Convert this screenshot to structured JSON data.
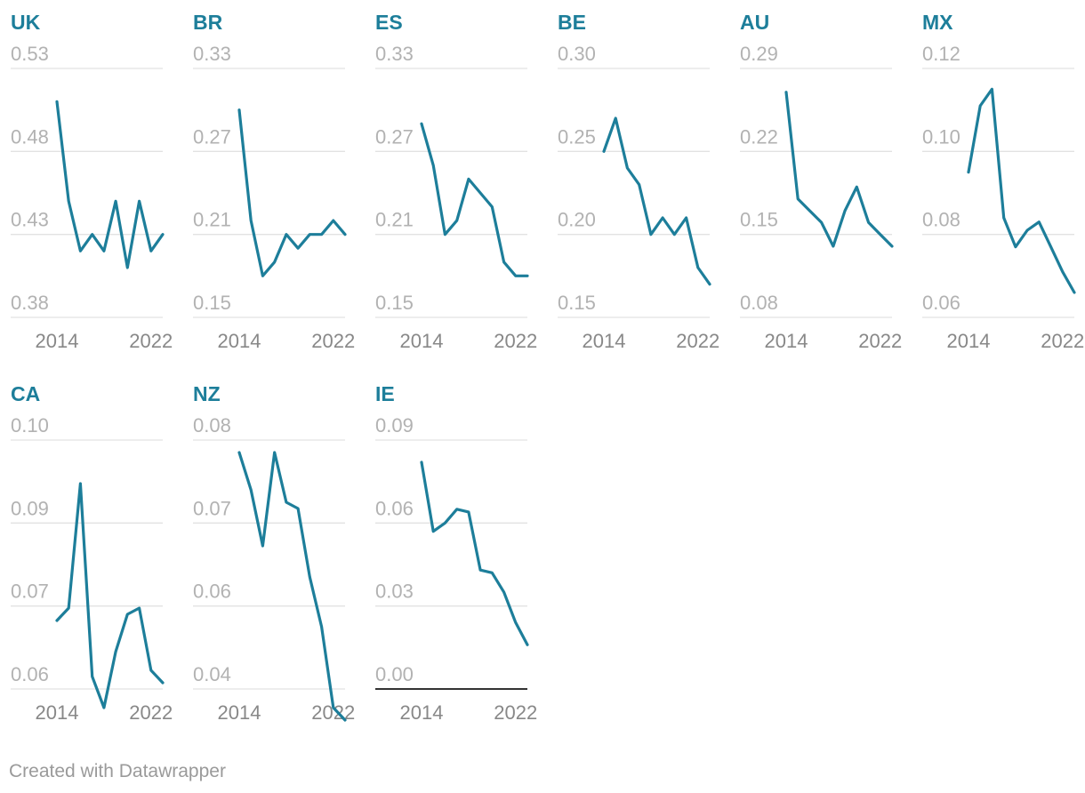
{
  "footer": {
    "credit": "Created with Datawrapper"
  },
  "colors": {
    "line": "#1d7e9a",
    "title": "#1d7e9a",
    "grid": "#e2e2e2",
    "tick": "#b2b2b2",
    "xtick": "#888888"
  },
  "chart_data": [
    {
      "type": "line",
      "title": "UK",
      "years": [
        2014,
        2015,
        2016,
        2017,
        2018,
        2019,
        2020,
        2021,
        2022,
        2023
      ],
      "values": [
        0.51,
        0.45,
        0.42,
        0.43,
        0.42,
        0.45,
        0.41,
        0.45,
        0.42,
        0.43
      ],
      "ylim": [
        0.38,
        0.53
      ],
      "yticks": [
        "0.53",
        "0.48",
        "0.43",
        "0.38"
      ],
      "xticks": [
        "2014",
        "2022"
      ]
    },
    {
      "type": "line",
      "title": "BR",
      "years": [
        2014,
        2015,
        2016,
        2017,
        2018,
        2019,
        2020,
        2021,
        2022,
        2023
      ],
      "values": [
        0.3,
        0.22,
        0.18,
        0.19,
        0.21,
        0.2,
        0.21,
        0.21,
        0.22,
        0.21
      ],
      "ylim": [
        0.15,
        0.33
      ],
      "yticks": [
        "0.33",
        "0.27",
        "0.21",
        "0.15"
      ],
      "xticks": [
        "2014",
        "2022"
      ]
    },
    {
      "type": "line",
      "title": "ES",
      "years": [
        2014,
        2015,
        2016,
        2017,
        2018,
        2019,
        2020,
        2021,
        2022,
        2023
      ],
      "values": [
        0.29,
        0.26,
        0.21,
        0.22,
        0.25,
        0.24,
        0.23,
        0.19,
        0.18,
        0.18
      ],
      "ylim": [
        0.15,
        0.33
      ],
      "yticks": [
        "0.33",
        "0.27",
        "0.21",
        "0.15"
      ],
      "xticks": [
        "2014",
        "2022"
      ]
    },
    {
      "type": "line",
      "title": "BE",
      "years": [
        2014,
        2015,
        2016,
        2017,
        2018,
        2019,
        2020,
        2021,
        2022,
        2023
      ],
      "values": [
        0.25,
        0.27,
        0.24,
        0.23,
        0.2,
        0.21,
        0.2,
        0.21,
        0.18,
        0.17
      ],
      "ylim": [
        0.15,
        0.3
      ],
      "yticks": [
        "0.30",
        "0.25",
        "0.20",
        "0.15"
      ],
      "xticks": [
        "2014",
        "2022"
      ]
    },
    {
      "type": "line",
      "title": "AU",
      "years": [
        2014,
        2015,
        2016,
        2017,
        2018,
        2019,
        2020,
        2021,
        2022,
        2023
      ],
      "values": [
        0.27,
        0.18,
        0.17,
        0.16,
        0.14,
        0.17,
        0.19,
        0.16,
        0.15,
        0.14
      ],
      "ylim": [
        0.08,
        0.29
      ],
      "yticks": [
        "0.29",
        "0.22",
        "0.15",
        "0.08"
      ],
      "xticks": [
        "2014",
        "2022"
      ]
    },
    {
      "type": "line",
      "title": "MX",
      "years": [
        2014,
        2015,
        2016,
        2017,
        2018,
        2019,
        2020,
        2021,
        2022,
        2023
      ],
      "values": [
        0.095,
        0.111,
        0.115,
        0.084,
        0.077,
        0.081,
        0.083,
        0.077,
        0.071,
        0.066
      ],
      "ylim": [
        0.06,
        0.12
      ],
      "yticks": [
        "0.12",
        "0.10",
        "0.08",
        "0.06"
      ],
      "xticks": [
        "2014",
        "2022"
      ]
    },
    {
      "type": "line",
      "title": "CA",
      "years": [
        2014,
        2015,
        2016,
        2017,
        2018,
        2019,
        2020,
        2021,
        2022,
        2023
      ],
      "values": [
        0.071,
        0.073,
        0.093,
        0.062,
        0.057,
        0.066,
        0.072,
        0.073,
        0.063,
        0.061
      ],
      "ylim": [
        0.06,
        0.1
      ],
      "yticks": [
        "0.10",
        "0.09",
        "0.07",
        "0.06"
      ],
      "xticks": [
        "2014",
        "2022"
      ]
    },
    {
      "type": "line",
      "title": "NZ",
      "years": [
        2014,
        2015,
        2016,
        2017,
        2018,
        2019,
        2020,
        2021,
        2022,
        2023
      ],
      "values": [
        0.078,
        0.072,
        0.063,
        0.078,
        0.07,
        0.069,
        0.058,
        0.05,
        0.037,
        0.035
      ],
      "ylim": [
        0.04,
        0.08
      ],
      "yticks": [
        "0.08",
        "0.07",
        "0.06",
        "0.04"
      ],
      "xticks": [
        "2014",
        "2022"
      ]
    },
    {
      "type": "line",
      "title": "IE",
      "years": [
        2014,
        2015,
        2016,
        2017,
        2018,
        2019,
        2020,
        2021,
        2022,
        2023
      ],
      "values": [
        0.082,
        0.057,
        0.06,
        0.065,
        0.064,
        0.043,
        0.042,
        0.035,
        0.024,
        0.016
      ],
      "ylim": [
        0.0,
        0.09
      ],
      "yticks": [
        "0.09",
        "0.06",
        "0.03",
        "0.00"
      ],
      "xticks": [
        "2014",
        "2022"
      ]
    }
  ]
}
